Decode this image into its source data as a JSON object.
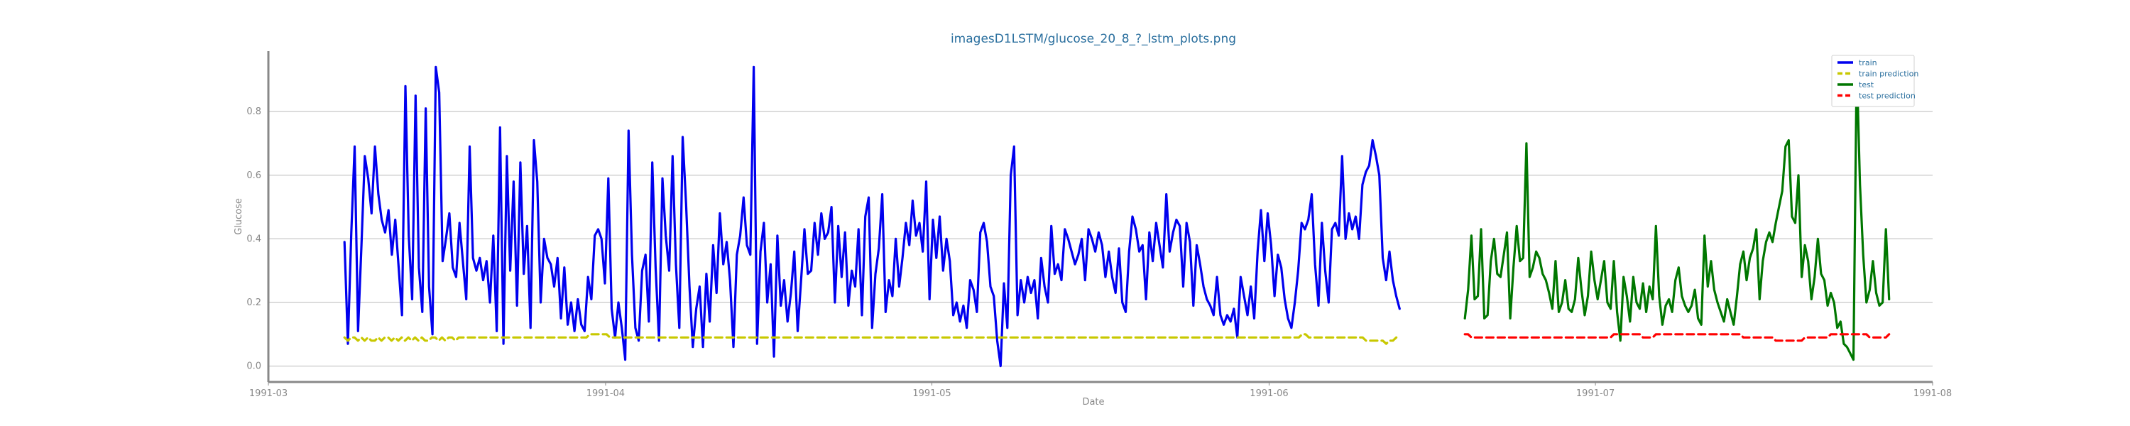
{
  "chart_data": {
    "type": "line",
    "title": "imagesD1LSTM/glucose_20_8_?_lstm_plots.png",
    "xlabel": "Date",
    "ylabel": "Glucose",
    "x_ticks": [
      "1991-03",
      "1991-04",
      "1991-05",
      "1991-06",
      "1991-07",
      "1991-08"
    ],
    "y_ticks": [
      "0.0",
      "0.2",
      "0.4",
      "0.6",
      "0.8"
    ],
    "ylim": [
      -0.05,
      0.99
    ],
    "xlim": [
      "1991-03-01",
      "1991-08-01"
    ],
    "grid": "horizontal",
    "legend_position": "top-right",
    "series": [
      {
        "name": "train",
        "color": "#0000ee",
        "style": "solid",
        "x_start": "1991-03-08",
        "x_end": "1991-06-13",
        "values": [
          0.39,
          0.07,
          0.42,
          0.69,
          0.11,
          0.38,
          0.66,
          0.59,
          0.48,
          0.69,
          0.54,
          0.46,
          0.42,
          0.49,
          0.35,
          0.46,
          0.31,
          0.16,
          0.88,
          0.41,
          0.21,
          0.85,
          0.31,
          0.17,
          0.81,
          0.25,
          0.1,
          0.94,
          0.86,
          0.33,
          0.4,
          0.48,
          0.31,
          0.28,
          0.45,
          0.33,
          0.21,
          0.69,
          0.34,
          0.3,
          0.34,
          0.27,
          0.33,
          0.2,
          0.41,
          0.11,
          0.75,
          0.07,
          0.66,
          0.3,
          0.58,
          0.19,
          0.64,
          0.29,
          0.44,
          0.12,
          0.71,
          0.58,
          0.2,
          0.4,
          0.34,
          0.32,
          0.25,
          0.34,
          0.15,
          0.31,
          0.13,
          0.2,
          0.11,
          0.21,
          0.13,
          0.11,
          0.28,
          0.21,
          0.41,
          0.43,
          0.4,
          0.26,
          0.59,
          0.18,
          0.09,
          0.2,
          0.12,
          0.02,
          0.74,
          0.35,
          0.12,
          0.08,
          0.3,
          0.35,
          0.14,
          0.64,
          0.31,
          0.08,
          0.59,
          0.41,
          0.3,
          0.66,
          0.32,
          0.12,
          0.72,
          0.51,
          0.25,
          0.06,
          0.18,
          0.25,
          0.06,
          0.29,
          0.14,
          0.38,
          0.23,
          0.48,
          0.32,
          0.39,
          0.27,
          0.06,
          0.35,
          0.41,
          0.53,
          0.38,
          0.35,
          0.94,
          0.07,
          0.36,
          0.45,
          0.2,
          0.32,
          0.03,
          0.41,
          0.19,
          0.27,
          0.14,
          0.23,
          0.36,
          0.11,
          0.27,
          0.43,
          0.29,
          0.3,
          0.45,
          0.35,
          0.48,
          0.4,
          0.42,
          0.5,
          0.2,
          0.44,
          0.28,
          0.42,
          0.19,
          0.3,
          0.25,
          0.43,
          0.16,
          0.47,
          0.53,
          0.12,
          0.29,
          0.37,
          0.54,
          0.17,
          0.27,
          0.22,
          0.4,
          0.25,
          0.34,
          0.45,
          0.38,
          0.52,
          0.41,
          0.45,
          0.36,
          0.58,
          0.21,
          0.46,
          0.34,
          0.47,
          0.3,
          0.4,
          0.33,
          0.16,
          0.2,
          0.14,
          0.19,
          0.12,
          0.27,
          0.24,
          0.17,
          0.42,
          0.45,
          0.39,
          0.25,
          0.22,
          0.08,
          0.0,
          0.26,
          0.12,
          0.6,
          0.69,
          0.16,
          0.27,
          0.2,
          0.28,
          0.23,
          0.27,
          0.15,
          0.34,
          0.25,
          0.2,
          0.44,
          0.29,
          0.32,
          0.27,
          0.43,
          0.4,
          0.36,
          0.32,
          0.35,
          0.4,
          0.27,
          0.43,
          0.4,
          0.36,
          0.42,
          0.38,
          0.28,
          0.36,
          0.28,
          0.23,
          0.37,
          0.2,
          0.17,
          0.36,
          0.47,
          0.43,
          0.36,
          0.38,
          0.21,
          0.42,
          0.33,
          0.45,
          0.38,
          0.31,
          0.54,
          0.36,
          0.42,
          0.46,
          0.44,
          0.25,
          0.45,
          0.39,
          0.19,
          0.38,
          0.32,
          0.25,
          0.21,
          0.19,
          0.16,
          0.28,
          0.16,
          0.13,
          0.16,
          0.14,
          0.18,
          0.09,
          0.28,
          0.22,
          0.16,
          0.25,
          0.15,
          0.36,
          0.49,
          0.33,
          0.48,
          0.38,
          0.22,
          0.35,
          0.31,
          0.21,
          0.15,
          0.12,
          0.2,
          0.3,
          0.45,
          0.43,
          0.46,
          0.54,
          0.32,
          0.19,
          0.45,
          0.3,
          0.2,
          0.43,
          0.45,
          0.41,
          0.66,
          0.4,
          0.48,
          0.43,
          0.47,
          0.4,
          0.57,
          0.61,
          0.63,
          0.71,
          0.66,
          0.6,
          0.34,
          0.27,
          0.36,
          0.27,
          0.22,
          0.18
        ]
      },
      {
        "name": "train prediction",
        "color": "#c8c800",
        "style": "dashed",
        "x_start": "1991-03-08",
        "x_end": "1991-06-13",
        "values": [
          0.09,
          0.08,
          0.09,
          0.09,
          0.08,
          0.09,
          0.08,
          0.09,
          0.08,
          0.08,
          0.09,
          0.08,
          0.09,
          0.09,
          0.08,
          0.09,
          0.08,
          0.09,
          0.08,
          0.09,
          0.08,
          0.09,
          0.08,
          0.09,
          0.08,
          0.08,
          0.09,
          0.09,
          0.08,
          0.09,
          0.08,
          0.09,
          0.09,
          0.08,
          0.09,
          0.09,
          0.09,
          0.09,
          0.09,
          0.09,
          0.09,
          0.09,
          0.09,
          0.09,
          0.09,
          0.09,
          0.09,
          0.09,
          0.09,
          0.09,
          0.09,
          0.09,
          0.09,
          0.09,
          0.09,
          0.09,
          0.09,
          0.09,
          0.09,
          0.09,
          0.09,
          0.09,
          0.09,
          0.09,
          0.09,
          0.09,
          0.09,
          0.09,
          0.09,
          0.09,
          0.09,
          0.09,
          0.09,
          0.1,
          0.1,
          0.1,
          0.1,
          0.1,
          0.1,
          0.09,
          0.09,
          0.09,
          0.09,
          0.09,
          0.09,
          0.09,
          0.09,
          0.09,
          0.09,
          0.09,
          0.09,
          0.09,
          0.09,
          0.09,
          0.09,
          0.09,
          0.09,
          0.09,
          0.09,
          0.09,
          0.09,
          0.09,
          0.09,
          0.09,
          0.09,
          0.09,
          0.09,
          0.09,
          0.09,
          0.09,
          0.09,
          0.09,
          0.09,
          0.09,
          0.09,
          0.09,
          0.09,
          0.09,
          0.09,
          0.09,
          0.09,
          0.09,
          0.09,
          0.09,
          0.09,
          0.09,
          0.09,
          0.09,
          0.09,
          0.09,
          0.09,
          0.09,
          0.09,
          0.09,
          0.09,
          0.09,
          0.09,
          0.09,
          0.09,
          0.09,
          0.09,
          0.09,
          0.09,
          0.09,
          0.09,
          0.09,
          0.09,
          0.09,
          0.09,
          0.09,
          0.09,
          0.09,
          0.09,
          0.09,
          0.09,
          0.09,
          0.09,
          0.09,
          0.09,
          0.09,
          0.09,
          0.09,
          0.09,
          0.09,
          0.09,
          0.09,
          0.09,
          0.09,
          0.09,
          0.09,
          0.09,
          0.09,
          0.09,
          0.09,
          0.09,
          0.09,
          0.09,
          0.09,
          0.09,
          0.09,
          0.09,
          0.09,
          0.09,
          0.09,
          0.09,
          0.09,
          0.09,
          0.09,
          0.09,
          0.09,
          0.09,
          0.09,
          0.09,
          0.09,
          0.09,
          0.09,
          0.09,
          0.09,
          0.09,
          0.09,
          0.09,
          0.09,
          0.09,
          0.09,
          0.09,
          0.09,
          0.09,
          0.09,
          0.09,
          0.09,
          0.09,
          0.09,
          0.09,
          0.09,
          0.09,
          0.09,
          0.09,
          0.09,
          0.09,
          0.09,
          0.09,
          0.09,
          0.09,
          0.09,
          0.09,
          0.09,
          0.09,
          0.09,
          0.09,
          0.09,
          0.09,
          0.09,
          0.09,
          0.09,
          0.09,
          0.09,
          0.09,
          0.09,
          0.09,
          0.09,
          0.09,
          0.09,
          0.09,
          0.09,
          0.09,
          0.09,
          0.09,
          0.09,
          0.09,
          0.09,
          0.09,
          0.09,
          0.09,
          0.09,
          0.09,
          0.09,
          0.09,
          0.09,
          0.09,
          0.09,
          0.09,
          0.09,
          0.09,
          0.09,
          0.09,
          0.09,
          0.09,
          0.09,
          0.09,
          0.09,
          0.09,
          0.09,
          0.09,
          0.09,
          0.09,
          0.09,
          0.09,
          0.09,
          0.09,
          0.09,
          0.09,
          0.09,
          0.09,
          0.09,
          0.09,
          0.1,
          0.1,
          0.09,
          0.09,
          0.09,
          0.09,
          0.09,
          0.09,
          0.09,
          0.09,
          0.09,
          0.09,
          0.09,
          0.09,
          0.09,
          0.09,
          0.09,
          0.09,
          0.09,
          0.08,
          0.08,
          0.08,
          0.08,
          0.08,
          0.08,
          0.07,
          0.08,
          0.08,
          0.09,
          0.09
        ]
      },
      {
        "name": "test",
        "color": "#007700",
        "style": "solid",
        "x_start": "1991-06-19",
        "x_end": "1991-07-28",
        "values": [
          0.15,
          0.24,
          0.41,
          0.21,
          0.22,
          0.43,
          0.15,
          0.16,
          0.33,
          0.4,
          0.29,
          0.28,
          0.35,
          0.42,
          0.15,
          0.31,
          0.44,
          0.33,
          0.34,
          0.7,
          0.28,
          0.31,
          0.36,
          0.34,
          0.29,
          0.27,
          0.23,
          0.18,
          0.33,
          0.17,
          0.2,
          0.27,
          0.18,
          0.17,
          0.21,
          0.34,
          0.24,
          0.16,
          0.22,
          0.36,
          0.27,
          0.21,
          0.27,
          0.33,
          0.2,
          0.18,
          0.33,
          0.17,
          0.08,
          0.28,
          0.22,
          0.14,
          0.28,
          0.2,
          0.18,
          0.26,
          0.17,
          0.25,
          0.21,
          0.44,
          0.22,
          0.13,
          0.19,
          0.21,
          0.17,
          0.27,
          0.31,
          0.22,
          0.19,
          0.17,
          0.19,
          0.24,
          0.15,
          0.13,
          0.41,
          0.25,
          0.33,
          0.24,
          0.2,
          0.17,
          0.14,
          0.21,
          0.17,
          0.13,
          0.22,
          0.32,
          0.36,
          0.27,
          0.34,
          0.37,
          0.43,
          0.21,
          0.33,
          0.39,
          0.42,
          0.39,
          0.45,
          0.5,
          0.55,
          0.69,
          0.71,
          0.47,
          0.45,
          0.6,
          0.28,
          0.38,
          0.33,
          0.21,
          0.28,
          0.4,
          0.29,
          0.27,
          0.19,
          0.23,
          0.2,
          0.12,
          0.14,
          0.07,
          0.06,
          0.04,
          0.02,
          0.95,
          0.57,
          0.35,
          0.2,
          0.24,
          0.33,
          0.23,
          0.19,
          0.2,
          0.43,
          0.21
        ]
      },
      {
        "name": "test prediction",
        "color": "#ff0000",
        "style": "dashed",
        "x_start": "1991-06-19",
        "x_end": "1991-07-28",
        "values": [
          0.1,
          0.1,
          0.09,
          0.09,
          0.09,
          0.09,
          0.09,
          0.09,
          0.09,
          0.09,
          0.09,
          0.09,
          0.09,
          0.09,
          0.09,
          0.09,
          0.09,
          0.09,
          0.09,
          0.09,
          0.09,
          0.09,
          0.09,
          0.09,
          0.09,
          0.09,
          0.09,
          0.09,
          0.09,
          0.09,
          0.09,
          0.09,
          0.09,
          0.09,
          0.09,
          0.09,
          0.09,
          0.09,
          0.09,
          0.09,
          0.09,
          0.09,
          0.09,
          0.09,
          0.09,
          0.09,
          0.1,
          0.1,
          0.1,
          0.1,
          0.1,
          0.1,
          0.1,
          0.1,
          0.1,
          0.09,
          0.09,
          0.09,
          0.09,
          0.1,
          0.1,
          0.1,
          0.1,
          0.1,
          0.1,
          0.1,
          0.1,
          0.1,
          0.1,
          0.1,
          0.1,
          0.1,
          0.1,
          0.1,
          0.1,
          0.1,
          0.1,
          0.1,
          0.1,
          0.1,
          0.1,
          0.1,
          0.1,
          0.1,
          0.1,
          0.1,
          0.09,
          0.09,
          0.09,
          0.09,
          0.09,
          0.09,
          0.09,
          0.09,
          0.09,
          0.09,
          0.08,
          0.08,
          0.08,
          0.08,
          0.08,
          0.08,
          0.08,
          0.08,
          0.08,
          0.09,
          0.09,
          0.09,
          0.09,
          0.09,
          0.09,
          0.09,
          0.09,
          0.1,
          0.1,
          0.1,
          0.1,
          0.1,
          0.1,
          0.1,
          0.1,
          0.1,
          0.1,
          0.1,
          0.1,
          0.09,
          0.09,
          0.09,
          0.09,
          0.09,
          0.09,
          0.1
        ]
      }
    ]
  }
}
